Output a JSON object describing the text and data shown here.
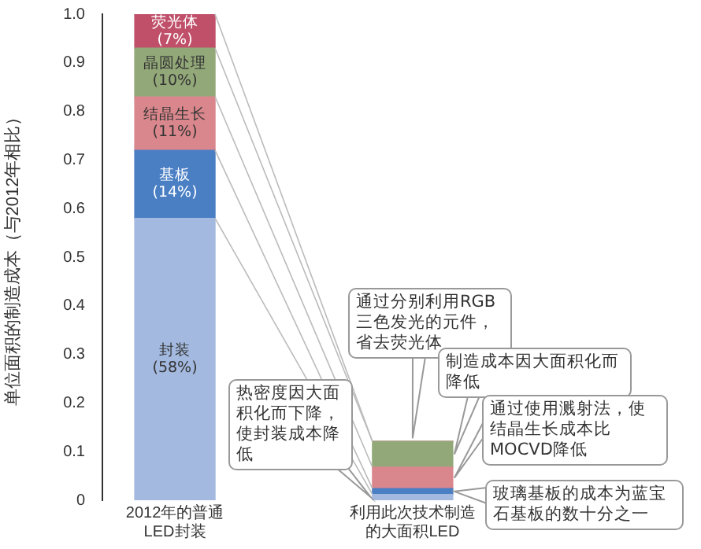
{
  "chart_data": {
    "type": "bar",
    "stacked": true,
    "ylabel": "单位面积的制造成本（与2012年相比）",
    "categories": [
      "2012年的普通LED封装",
      "利用此次技术制造的大面积LED"
    ],
    "series": [
      {
        "name": "封装",
        "color": "#a3b9df",
        "values": [
          0.58,
          0.012
        ],
        "value_labels": [
          "(58%)",
          null
        ]
      },
      {
        "name": "基板",
        "color": "#4a7fc4",
        "values": [
          0.14,
          0.012
        ],
        "value_labels": [
          "(14%)",
          null
        ]
      },
      {
        "name": "结晶生长",
        "color": "#d9878c",
        "values": [
          0.11,
          0.044
        ],
        "value_labels": [
          "(11%)",
          null
        ]
      },
      {
        "name": "晶圆处理",
        "color": "#93a878",
        "values": [
          0.1,
          0.053
        ],
        "value_labels": [
          "(10%)",
          null
        ]
      },
      {
        "name": "荧光体",
        "color": "#c0506a",
        "values": [
          0.07,
          0
        ],
        "value_labels": [
          "(7%)",
          null
        ]
      }
    ],
    "ylim": [
      0,
      1
    ],
    "yticks": [
      0,
      0.1,
      0.2,
      0.3,
      0.4,
      0.5,
      0.6,
      0.7,
      0.8,
      0.9,
      {
        "value": 1,
        "label": "1.0"
      }
    ],
    "grid": false,
    "legend": false,
    "annotations": [
      "热密度因大面积化而下降，使封装成本降低",
      "通过分别利用RGB三色发光的元件，省去荧光体",
      "制造成本因大面积化而降低",
      "通过使用溅射法，使结晶生长成本比MOCVD降低",
      "玻璃基板的成本为蓝宝石基板的数十分之一"
    ]
  }
}
